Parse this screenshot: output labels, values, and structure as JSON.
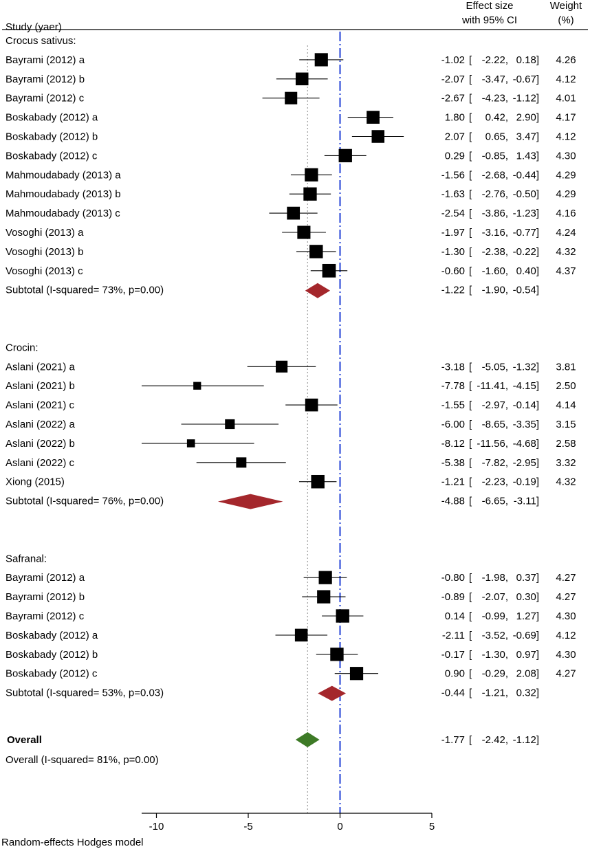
{
  "chart_data": {
    "type": "forest",
    "header": {
      "study": "Study (yaer)",
      "effect_line1": "Effect size",
      "effect_line2": "with 95% CI",
      "weight_line1": "Weight",
      "weight_line2": "(%)"
    },
    "groups": [
      {
        "name": "Crocus sativus:",
        "studies": [
          {
            "label": "Bayrami (2012) a",
            "es": -1.02,
            "lo": -2.22,
            "hi": 0.18,
            "weight": 4.26
          },
          {
            "label": "Bayrami (2012) b",
            "es": -2.07,
            "lo": -3.47,
            "hi": -0.67,
            "weight": 4.12
          },
          {
            "label": "Bayrami (2012) c",
            "es": -2.67,
            "lo": -4.23,
            "hi": -1.12,
            "weight": 4.01
          },
          {
            "label": "Boskabady (2012) a",
            "es": 1.8,
            "lo": 0.42,
            "hi": 2.9,
            "weight": 4.17
          },
          {
            "label": "Boskabady (2012) b",
            "es": 2.07,
            "lo": 0.65,
            "hi": 3.47,
            "weight": 4.12
          },
          {
            "label": "Boskabady (2012) c",
            "es": 0.29,
            "lo": -0.85,
            "hi": 1.43,
            "weight": 4.3
          },
          {
            "label": "Mahmoudabady (2013) a",
            "es": -1.56,
            "lo": -2.68,
            "hi": -0.44,
            "weight": 4.29
          },
          {
            "label": "Mahmoudabady (2013) b",
            "es": -1.63,
            "lo": -2.76,
            "hi": -0.5,
            "weight": 4.29
          },
          {
            "label": "Mahmoudabady (2013) c",
            "es": -2.54,
            "lo": -3.86,
            "hi": -1.23,
            "weight": 4.16
          },
          {
            "label": "Vosoghi (2013) a",
            "es": -1.97,
            "lo": -3.16,
            "hi": -0.77,
            "weight": 4.24
          },
          {
            "label": "Vosoghi (2013) b",
            "es": -1.3,
            "lo": -2.38,
            "hi": -0.22,
            "weight": 4.32
          },
          {
            "label": "Vosoghi (2013) c",
            "es": -0.6,
            "lo": -1.6,
            "hi": 0.4,
            "weight": 4.37
          }
        ],
        "subtotal": {
          "label": "Subtotal (I-squared= 73%, p=0.00)",
          "es": -1.22,
          "lo": -1.9,
          "hi": -0.54
        }
      },
      {
        "name": "Crocin:",
        "studies": [
          {
            "label": "Aslani (2021) a",
            "es": -3.18,
            "lo": -5.05,
            "hi": -1.32,
            "weight": 3.81
          },
          {
            "label": "Aslani (2021) b",
            "es": -7.78,
            "lo": -11.41,
            "hi": -4.15,
            "weight": 2.5
          },
          {
            "label": "Aslani (2021) c",
            "es": -1.55,
            "lo": -2.97,
            "hi": -0.14,
            "weight": 4.14
          },
          {
            "label": "Aslani (2022) a",
            "es": -6.0,
            "lo": -8.65,
            "hi": -3.35,
            "weight": 3.15
          },
          {
            "label": "Aslani (2022) b",
            "es": -8.12,
            "lo": -11.56,
            "hi": -4.68,
            "weight": 2.58
          },
          {
            "label": "Aslani (2022) c",
            "es": -5.38,
            "lo": -7.82,
            "hi": -2.95,
            "weight": 3.32
          },
          {
            "label": "Xiong (2015)",
            "es": -1.21,
            "lo": -2.23,
            "hi": -0.19,
            "weight": 4.32
          }
        ],
        "subtotal": {
          "label": "Subtotal (I-squared= 76%, p=0.00)",
          "es": -4.88,
          "lo": -6.65,
          "hi": -3.11
        }
      },
      {
        "name": "Safranal:",
        "studies": [
          {
            "label": "Bayrami (2012) a",
            "es": -0.8,
            "lo": -1.98,
            "hi": 0.37,
            "weight": 4.27
          },
          {
            "label": "Bayrami (2012) b",
            "es": -0.89,
            "lo": -2.07,
            "hi": 0.3,
            "weight": 4.27
          },
          {
            "label": "Bayrami (2012) c",
            "es": 0.14,
            "lo": -0.99,
            "hi": 1.27,
            "weight": 4.3
          },
          {
            "label": "Boskabady (2012) a",
            "es": -2.11,
            "lo": -3.52,
            "hi": -0.69,
            "weight": 4.12
          },
          {
            "label": "Boskabady (2012) b",
            "es": -0.17,
            "lo": -1.3,
            "hi": 0.97,
            "weight": 4.3
          },
          {
            "label": "Boskabady (2012) c",
            "es": 0.9,
            "lo": -0.29,
            "hi": 2.08,
            "weight": 4.27
          }
        ],
        "subtotal": {
          "label": "Subtotal (I-squared= 53%, p=0.03)",
          "es": -0.44,
          "lo": -1.21,
          "hi": 0.32
        }
      }
    ],
    "overall": {
      "label": "Overall",
      "heterogeneity": "Overall (I-squared= 81%, p=0.00)",
      "es": -1.77,
      "lo": -2.42,
      "hi": -1.12
    },
    "x_axis": {
      "ticks": [
        -10,
        -5,
        0,
        5
      ],
      "tick_labels": [
        "-10",
        "-5",
        "0",
        "5"
      ],
      "range": [
        -10.5,
        5
      ]
    },
    "footnote": "Random-effects Hodges model",
    "colors": {
      "square": "#000000",
      "subtotal_diamond": "#a4272c",
      "overall_diamond": "#3d7a26",
      "reference_line": "#1f3fd6"
    }
  }
}
